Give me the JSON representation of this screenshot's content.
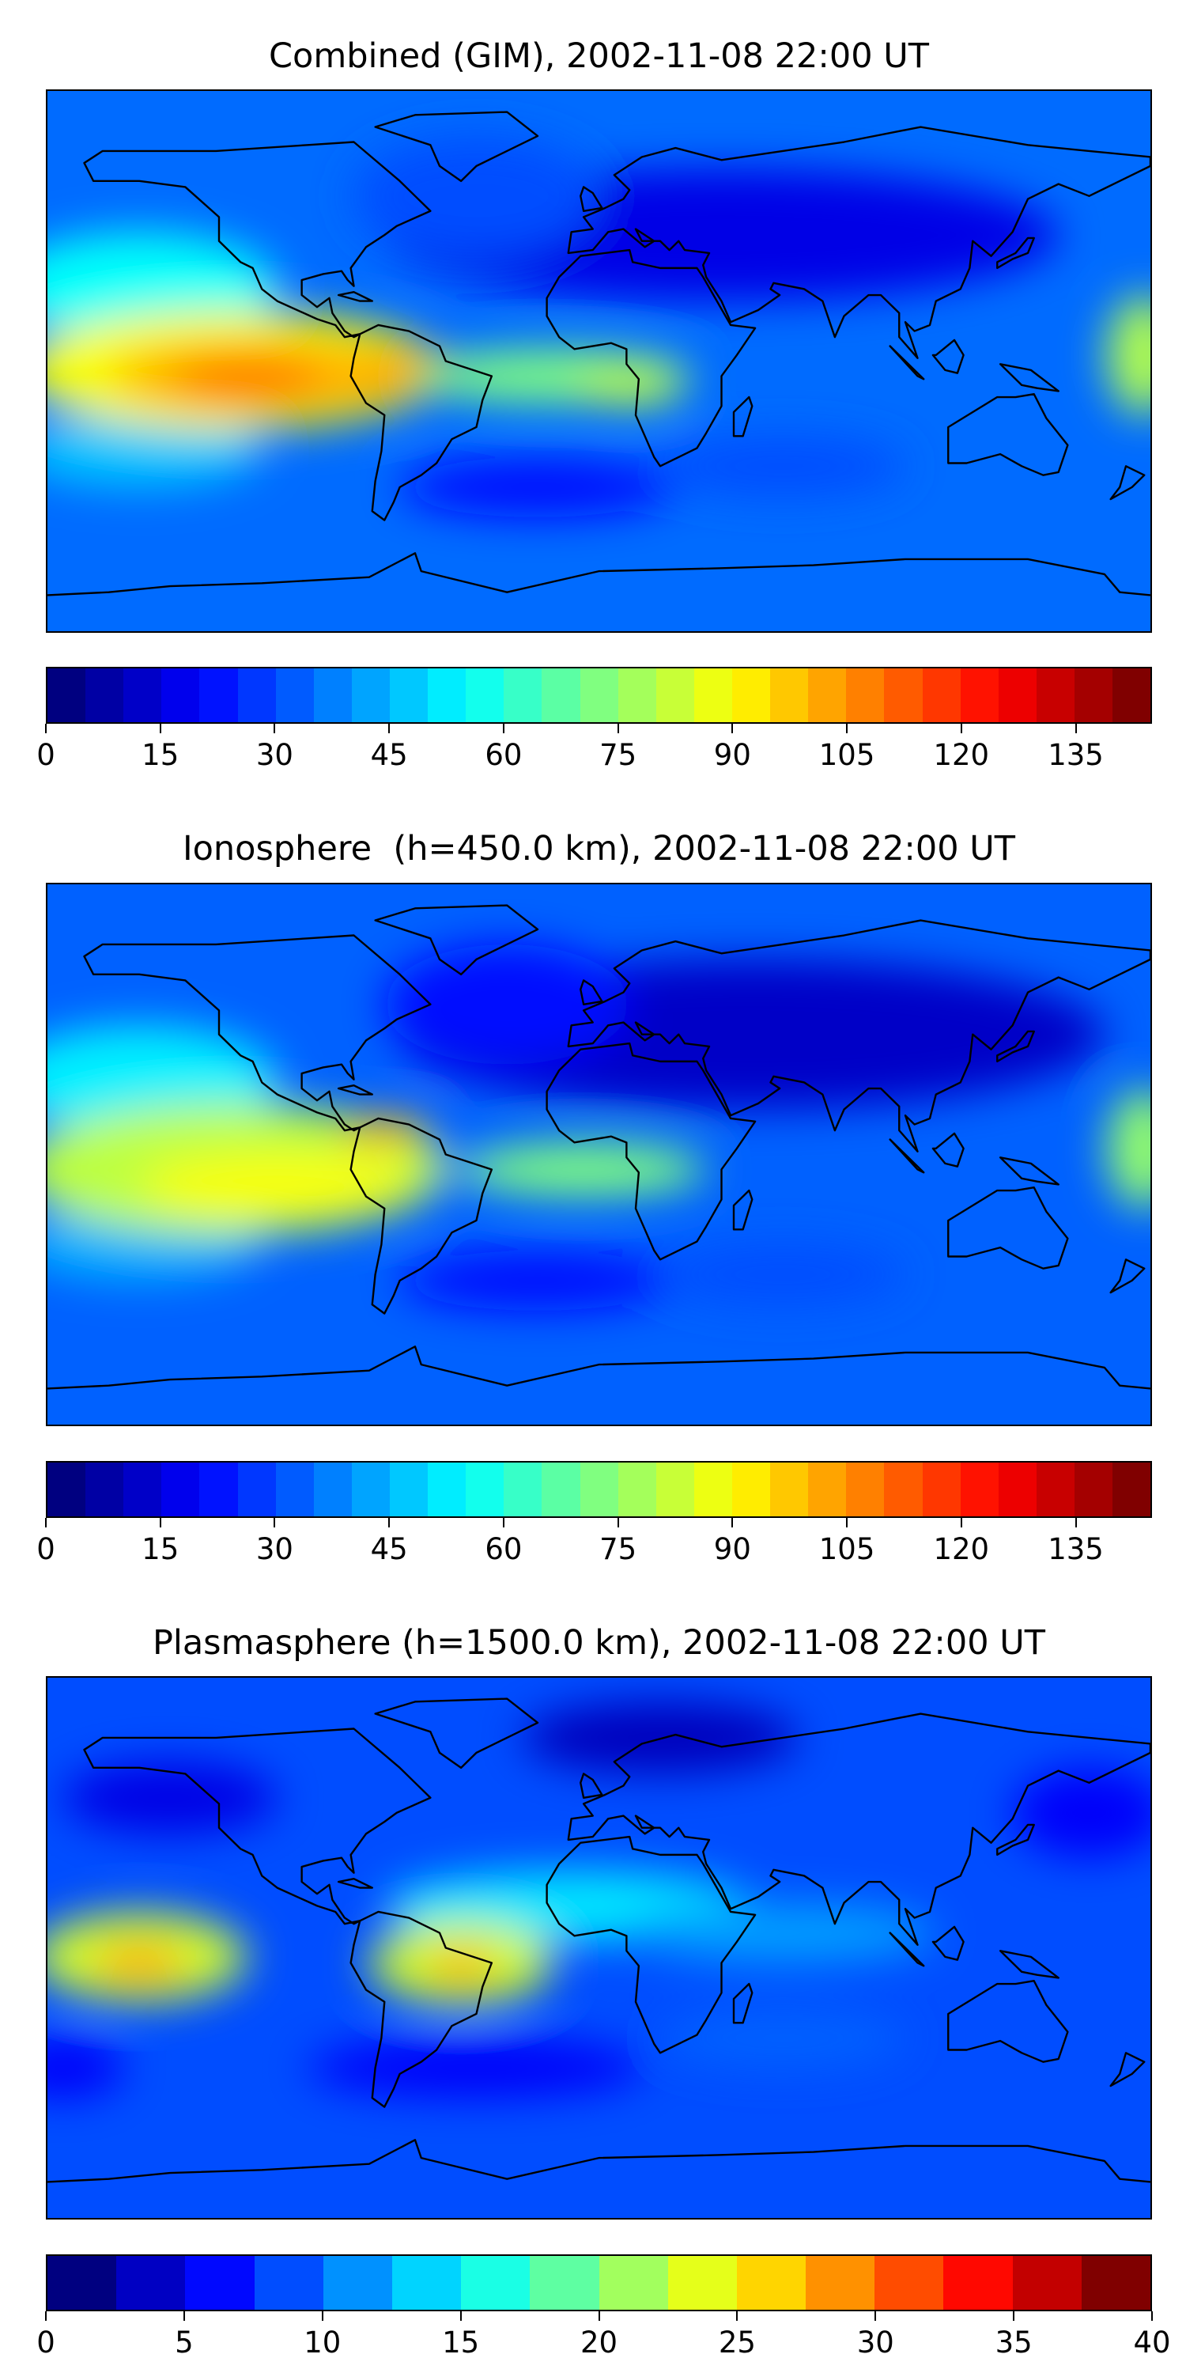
{
  "chart_data": [
    {
      "type": "heatmap",
      "title": "Combined (GIM), 2002-11-08 22:00 UT",
      "xlabel": "",
      "ylabel": "",
      "xlim": [
        -180,
        180
      ],
      "ylim": [
        -90,
        90
      ],
      "colorbar": {
        "vmin": 0,
        "vmax": 145,
        "step": 5,
        "ticks": [
          "0",
          "15",
          "30",
          "45",
          "60",
          "75",
          "90",
          "105",
          "120",
          "135"
        ],
        "tick_values": [
          0,
          15,
          30,
          45,
          60,
          75,
          90,
          105,
          120,
          135
        ]
      }
    },
    {
      "type": "heatmap",
      "title": "Ionosphere  (h=450.0 km), 2002-11-08 22:00 UT",
      "xlabel": "",
      "ylabel": "",
      "xlim": [
        -180,
        180
      ],
      "ylim": [
        -90,
        90
      ],
      "colorbar": {
        "vmin": 0,
        "vmax": 145,
        "step": 5,
        "ticks": [
          "0",
          "15",
          "30",
          "45",
          "60",
          "75",
          "90",
          "105",
          "120",
          "135"
        ],
        "tick_values": [
          0,
          15,
          30,
          45,
          60,
          75,
          90,
          105,
          120,
          135
        ]
      }
    },
    {
      "type": "heatmap",
      "title": "Plasmasphere (h=1500.0 km), 2002-11-08 22:00 UT",
      "xlabel": "",
      "ylabel": "",
      "xlim": [
        -180,
        180
      ],
      "ylim": [
        -90,
        90
      ],
      "colorbar": {
        "vmin": 0,
        "vmax": 40,
        "step": 2.5,
        "ticks": [
          "0",
          "5",
          "10",
          "15",
          "20",
          "25",
          "30",
          "35",
          "40"
        ],
        "tick_values": [
          0,
          5,
          10,
          15,
          20,
          25,
          30,
          35,
          40
        ]
      }
    }
  ]
}
